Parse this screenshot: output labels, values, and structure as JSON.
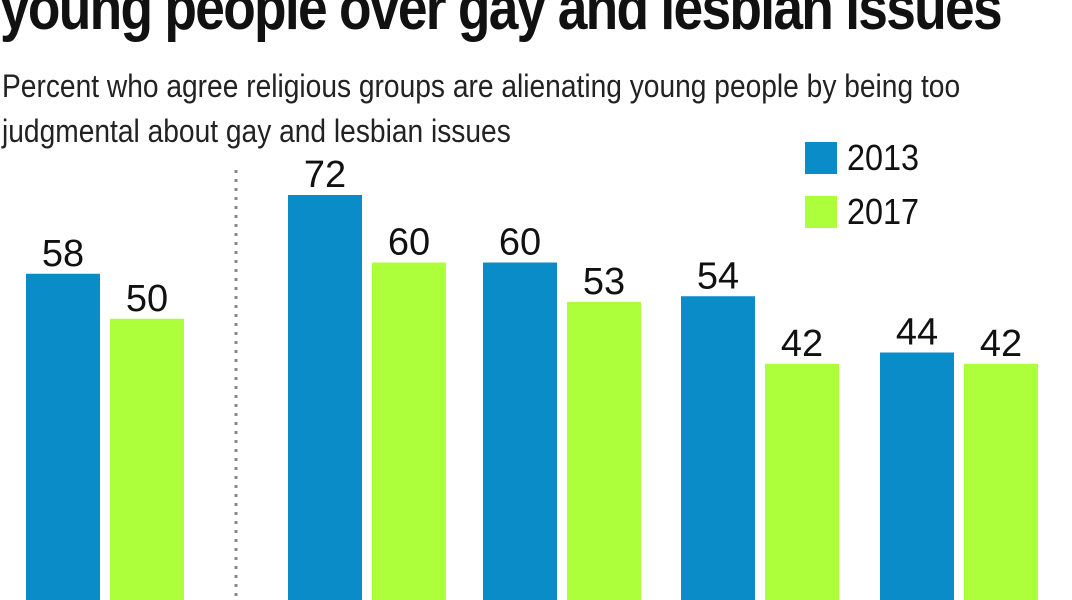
{
  "title": "young people over gay and lesbian issues",
  "subtitle": "Percent who agree religious groups are alienating young people by being too judgmental about gay and lesbian issues",
  "colors": {
    "2013": "#0a8cc8",
    "2017": "#adff3b",
    "divider": "#888888"
  },
  "chart_data": {
    "type": "bar",
    "categories": [
      "",
      "",
      "",
      "",
      ""
    ],
    "series": [
      {
        "name": "2013",
        "values": [
          58,
          72,
          60,
          54,
          44
        ]
      },
      {
        "name": "2017",
        "values": [
          50,
          60,
          53,
          42,
          42
        ]
      }
    ],
    "legend_position": "top-right",
    "grid": false,
    "ylim": [
      0,
      100
    ]
  }
}
